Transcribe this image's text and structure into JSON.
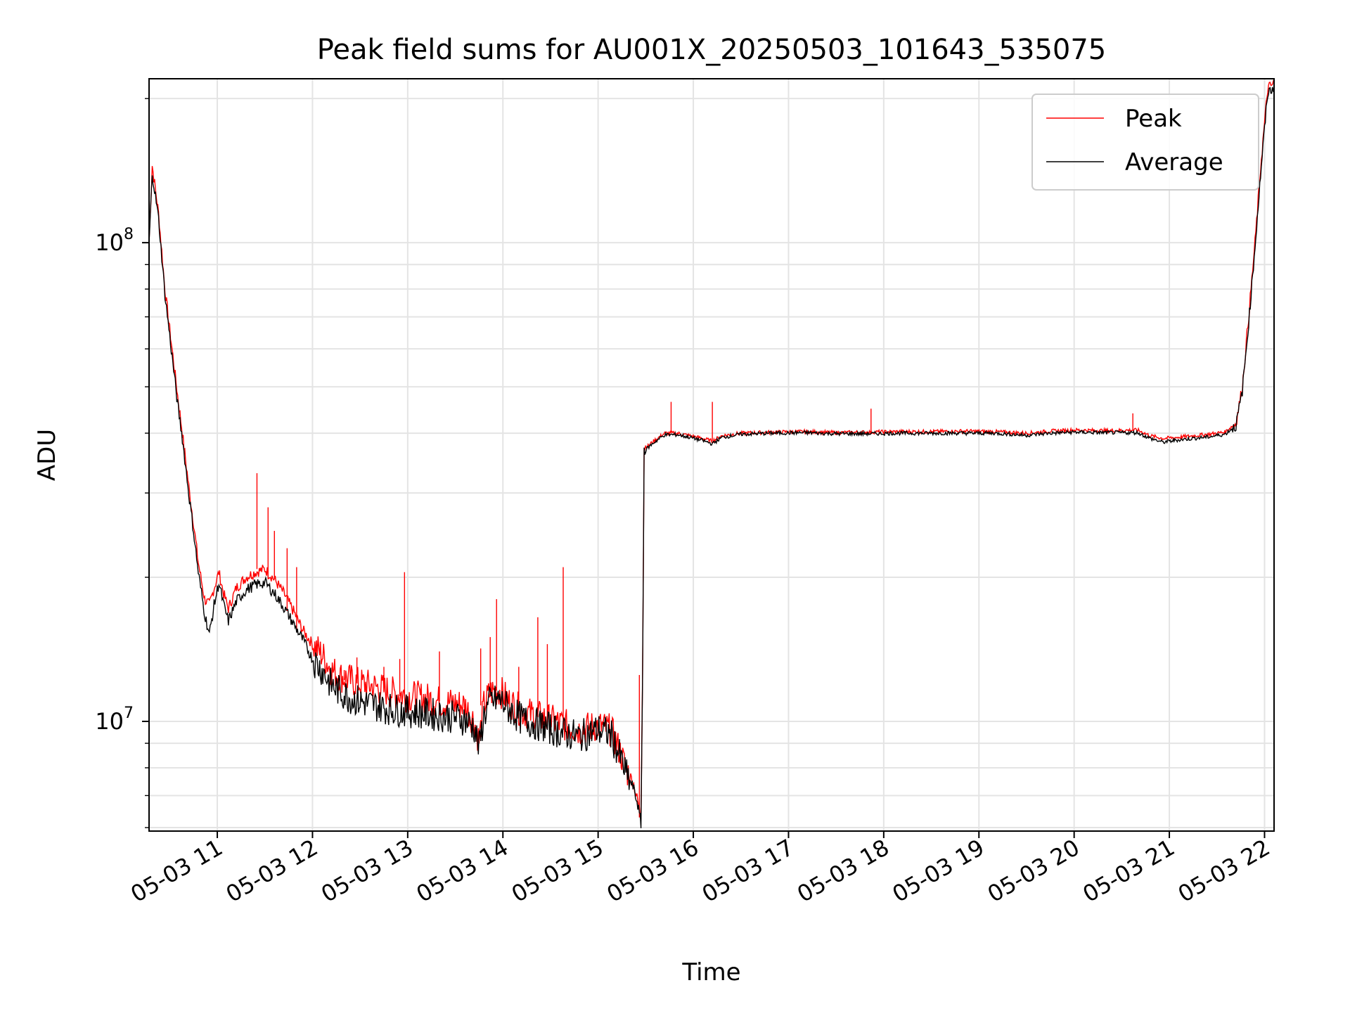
{
  "chart_data": {
    "type": "line",
    "title": "Peak field sums for AU001X_20250503_101643_535075",
    "xlabel": "Time",
    "ylabel": "ADU",
    "y_scale": "log",
    "ylim": [
      5900000,
      220000000
    ],
    "xlim": [
      "2025-05-03 10:17",
      "2025-05-03 22:06"
    ],
    "grid": true,
    "legend_position": "top-right",
    "x_ticks": [
      "05-03 11",
      "05-03 12",
      "05-03 13",
      "05-03 14",
      "05-03 15",
      "05-03 16",
      "05-03 17",
      "05-03 18",
      "05-03 19",
      "05-03 20",
      "05-03 21",
      "05-03 22"
    ],
    "y_ticks": [
      {
        "value": 10000000,
        "base": "10",
        "exp": "7"
      },
      {
        "value": 100000000,
        "base": "10",
        "exp": "8"
      }
    ],
    "series": [
      {
        "name": "Peak",
        "color": "#ff0000",
        "points": [
          [
            "2025-05-03 10:17",
            100000000
          ],
          [
            "2025-05-03 10:19",
            145000000
          ],
          [
            "2025-05-03 10:23",
            115000000
          ],
          [
            "2025-05-03 10:27",
            80000000
          ],
          [
            "2025-05-03 10:32",
            58000000
          ],
          [
            "2025-05-03 10:35",
            48000000
          ],
          [
            "2025-05-03 10:38",
            40000000
          ],
          [
            "2025-05-03 10:42",
            31000000
          ],
          [
            "2025-05-03 10:45",
            26000000
          ],
          [
            "2025-05-03 10:48",
            21500000
          ],
          [
            "2025-05-03 10:52",
            18000000
          ],
          [
            "2025-05-03 10:55",
            17500000
          ],
          [
            "2025-05-03 10:58",
            19000000
          ],
          [
            "2025-05-03 11:01",
            20500000
          ],
          [
            "2025-05-03 11:04",
            18500000
          ],
          [
            "2025-05-03 11:07",
            17200000
          ],
          [
            "2025-05-03 11:12",
            19000000
          ],
          [
            "2025-05-03 11:18",
            20000000
          ],
          [
            "2025-05-03 11:24",
            20500000
          ],
          [
            "2025-05-03 11:30",
            20800000
          ],
          [
            "2025-05-03 11:36",
            19800000
          ],
          [
            "2025-05-03 11:42",
            18500000
          ],
          [
            "2025-05-03 11:48",
            17000000
          ],
          [
            "2025-05-03 11:54",
            15500000
          ],
          [
            "2025-05-03 12:00",
            14500000
          ],
          [
            "2025-05-03 12:06",
            13800000
          ],
          [
            "2025-05-03 12:12",
            12800000
          ],
          [
            "2025-05-03 12:18",
            12400000
          ],
          [
            "2025-05-03 12:24",
            12200000
          ],
          [
            "2025-05-03 12:30",
            12000000
          ],
          [
            "2025-05-03 12:40",
            11800000
          ],
          [
            "2025-05-03 12:50",
            11500000
          ],
          [
            "2025-05-03 13:00",
            11300000
          ],
          [
            "2025-05-03 13:10",
            11200000
          ],
          [
            "2025-05-03 13:20",
            11000000
          ],
          [
            "2025-05-03 13:30",
            10900000
          ],
          [
            "2025-05-03 13:36",
            10800000
          ],
          [
            "2025-05-03 13:42",
            10000000
          ],
          [
            "2025-05-03 13:45",
            9100000
          ],
          [
            "2025-05-03 13:48",
            10800000
          ],
          [
            "2025-05-03 13:52",
            11500000
          ],
          [
            "2025-05-03 13:58",
            11600000
          ],
          [
            "2025-05-03 14:04",
            11000000
          ],
          [
            "2025-05-03 14:12",
            10500000
          ],
          [
            "2025-05-03 14:24",
            10200000
          ],
          [
            "2025-05-03 14:36",
            9900000
          ],
          [
            "2025-05-03 14:48",
            9600000
          ],
          [
            "2025-05-03 15:00",
            9800000
          ],
          [
            "2025-05-03 15:08",
            9600000
          ],
          [
            "2025-05-03 15:14",
            8600000
          ],
          [
            "2025-05-03 15:18",
            7900000
          ],
          [
            "2025-05-03 15:22",
            7500000
          ],
          [
            "2025-05-03 15:25",
            6800000
          ],
          [
            "2025-05-03 15:27",
            6300000
          ],
          [
            "2025-05-03 15:28",
            12500000
          ],
          [
            "2025-05-03 15:29",
            37500000
          ],
          [
            "2025-05-03 15:31",
            37500000
          ],
          [
            "2025-05-03 15:35",
            38500000
          ],
          [
            "2025-05-03 15:42",
            40000000
          ],
          [
            "2025-05-03 15:50",
            40000000
          ],
          [
            "2025-05-03 15:58",
            39500000
          ],
          [
            "2025-05-03 16:06",
            39000000
          ],
          [
            "2025-05-03 16:12",
            38500000
          ],
          [
            "2025-05-03 16:18",
            39500000
          ],
          [
            "2025-05-03 16:30",
            40000000
          ],
          [
            "2025-05-03 16:50",
            40200000
          ],
          [
            "2025-05-03 17:10",
            40300000
          ],
          [
            "2025-05-03 17:30",
            40100000
          ],
          [
            "2025-05-03 17:50",
            40200000
          ],
          [
            "2025-05-03 18:10",
            40300000
          ],
          [
            "2025-05-03 18:30",
            40300000
          ],
          [
            "2025-05-03 18:50",
            40400000
          ],
          [
            "2025-05-03 19:10",
            40300000
          ],
          [
            "2025-05-03 19:30",
            40000000
          ],
          [
            "2025-05-03 19:45",
            40400000
          ],
          [
            "2025-05-03 20:00",
            40600000
          ],
          [
            "2025-05-03 20:20",
            40500000
          ],
          [
            "2025-05-03 20:40",
            40600000
          ],
          [
            "2025-05-03 20:48",
            39500000
          ],
          [
            "2025-05-03 20:56",
            39000000
          ],
          [
            "2025-05-03 21:05",
            39200000
          ],
          [
            "2025-05-03 21:15",
            39500000
          ],
          [
            "2025-05-03 21:25",
            39800000
          ],
          [
            "2025-05-03 21:35",
            40200000
          ],
          [
            "2025-05-03 21:42",
            42000000
          ],
          [
            "2025-05-03 21:46",
            50000000
          ],
          [
            "2025-05-03 21:50",
            70000000
          ],
          [
            "2025-05-03 21:54",
            100000000
          ],
          [
            "2025-05-03 21:58",
            150000000
          ],
          [
            "2025-05-03 22:02",
            210000000
          ],
          [
            "2025-05-03 22:06",
            215000000
          ]
        ],
        "spikes": [
          [
            "2025-05-03 11:25",
            33000000
          ],
          [
            "2025-05-03 11:32",
            28000000
          ],
          [
            "2025-05-03 11:36",
            25000000
          ],
          [
            "2025-05-03 11:44",
            23000000
          ],
          [
            "2025-05-03 11:50",
            21000000
          ],
          [
            "2025-05-03 12:20",
            12800000
          ],
          [
            "2025-05-03 12:28",
            13600000
          ],
          [
            "2025-05-03 12:45",
            13000000
          ],
          [
            "2025-05-03 12:55",
            13500000
          ],
          [
            "2025-05-03 12:58",
            20500000
          ],
          [
            "2025-05-03 13:20",
            14000000
          ],
          [
            "2025-05-03 13:46",
            14200000
          ],
          [
            "2025-05-03 13:52",
            15000000
          ],
          [
            "2025-05-03 13:56",
            18000000
          ],
          [
            "2025-05-03 14:10",
            13000000
          ],
          [
            "2025-05-03 14:22",
            16500000
          ],
          [
            "2025-05-03 14:28",
            14500000
          ],
          [
            "2025-05-03 14:38",
            21000000
          ],
          [
            "2025-05-03 15:26",
            12500000
          ],
          [
            "2025-05-03 15:46",
            46500000
          ],
          [
            "2025-05-03 16:12",
            46500000
          ],
          [
            "2025-05-03 17:52",
            45000000
          ],
          [
            "2025-05-03 20:37",
            44000000
          ]
        ]
      },
      {
        "name": "Average",
        "color": "#000000",
        "points": [
          [
            "2025-05-03 10:17",
            99000000
          ],
          [
            "2025-05-03 10:19",
            140000000
          ],
          [
            "2025-05-03 10:23",
            112000000
          ],
          [
            "2025-05-03 10:27",
            78000000
          ],
          [
            "2025-05-03 10:32",
            56000000
          ],
          [
            "2025-05-03 10:35",
            46000000
          ],
          [
            "2025-05-03 10:38",
            39000000
          ],
          [
            "2025-05-03 10:42",
            30000000
          ],
          [
            "2025-05-03 10:45",
            25000000
          ],
          [
            "2025-05-03 10:48",
            20500000
          ],
          [
            "2025-05-03 10:52",
            16800000
          ],
          [
            "2025-05-03 10:55",
            15200000
          ],
          [
            "2025-05-03 10:58",
            17500000
          ],
          [
            "2025-05-03 11:01",
            19500000
          ],
          [
            "2025-05-03 11:04",
            17500000
          ],
          [
            "2025-05-03 11:07",
            16200000
          ],
          [
            "2025-05-03 11:12",
            17800000
          ],
          [
            "2025-05-03 11:18",
            18800000
          ],
          [
            "2025-05-03 11:24",
            19300000
          ],
          [
            "2025-05-03 11:30",
            19500000
          ],
          [
            "2025-05-03 11:36",
            18500000
          ],
          [
            "2025-05-03 11:42",
            17300000
          ],
          [
            "2025-05-03 11:48",
            16000000
          ],
          [
            "2025-05-03 11:54",
            14800000
          ],
          [
            "2025-05-03 12:00",
            13500000
          ],
          [
            "2025-05-03 12:06",
            12800000
          ],
          [
            "2025-05-03 12:12",
            11900000
          ],
          [
            "2025-05-03 12:18",
            11500000
          ],
          [
            "2025-05-03 12:24",
            11200000
          ],
          [
            "2025-05-03 12:30",
            11000000
          ],
          [
            "2025-05-03 12:40",
            10800000
          ],
          [
            "2025-05-03 12:50",
            10600000
          ],
          [
            "2025-05-03 13:00",
            10500000
          ],
          [
            "2025-05-03 13:10",
            10400000
          ],
          [
            "2025-05-03 13:20",
            10300000
          ],
          [
            "2025-05-03 13:30",
            10200000
          ],
          [
            "2025-05-03 13:36",
            10100000
          ],
          [
            "2025-05-03 13:42",
            9700000
          ],
          [
            "2025-05-03 13:45",
            8800000
          ],
          [
            "2025-05-03 13:48",
            10300000
          ],
          [
            "2025-05-03 13:52",
            11000000
          ],
          [
            "2025-05-03 13:58",
            11100000
          ],
          [
            "2025-05-03 14:04",
            10600000
          ],
          [
            "2025-05-03 14:12",
            10100000
          ],
          [
            "2025-05-03 14:24",
            9800000
          ],
          [
            "2025-05-03 14:36",
            9500000
          ],
          [
            "2025-05-03 14:48",
            9300000
          ],
          [
            "2025-05-03 15:00",
            9600000
          ],
          [
            "2025-05-03 15:08",
            9400000
          ],
          [
            "2025-05-03 15:14",
            8400000
          ],
          [
            "2025-05-03 15:18",
            7700000
          ],
          [
            "2025-05-03 15:22",
            7300000
          ],
          [
            "2025-05-03 15:25",
            6700000
          ],
          [
            "2025-05-03 15:27",
            6100000
          ],
          [
            "2025-05-03 15:28",
            12000000
          ],
          [
            "2025-05-03 15:29",
            37000000
          ],
          [
            "2025-05-03 15:31",
            37200000
          ],
          [
            "2025-05-03 15:35",
            38200000
          ],
          [
            "2025-05-03 15:42",
            39700000
          ],
          [
            "2025-05-03 15:50",
            39700000
          ],
          [
            "2025-05-03 15:58",
            39200000
          ],
          [
            "2025-05-03 16:06",
            38600000
          ],
          [
            "2025-05-03 16:12",
            38000000
          ],
          [
            "2025-05-03 16:18",
            39200000
          ],
          [
            "2025-05-03 16:30",
            39800000
          ],
          [
            "2025-05-03 16:50",
            40000000
          ],
          [
            "2025-05-03 17:10",
            40100000
          ],
          [
            "2025-05-03 17:30",
            39900000
          ],
          [
            "2025-05-03 17:50",
            39900000
          ],
          [
            "2025-05-03 18:10",
            40000000
          ],
          [
            "2025-05-03 18:30",
            40000000
          ],
          [
            "2025-05-03 18:50",
            40000000
          ],
          [
            "2025-05-03 19:10",
            40000000
          ],
          [
            "2025-05-03 19:30",
            39600000
          ],
          [
            "2025-05-03 19:45",
            40000000
          ],
          [
            "2025-05-03 20:00",
            40200000
          ],
          [
            "2025-05-03 20:20",
            40100000
          ],
          [
            "2025-05-03 20:40",
            40100000
          ],
          [
            "2025-05-03 20:48",
            39000000
          ],
          [
            "2025-05-03 20:56",
            38300000
          ],
          [
            "2025-05-03 21:05",
            38700000
          ],
          [
            "2025-05-03 21:15",
            39000000
          ],
          [
            "2025-05-03 21:25",
            39300000
          ],
          [
            "2025-05-03 21:35",
            39800000
          ],
          [
            "2025-05-03 21:42",
            41500000
          ],
          [
            "2025-05-03 21:46",
            49000000
          ],
          [
            "2025-05-03 21:50",
            68000000
          ],
          [
            "2025-05-03 21:54",
            98000000
          ],
          [
            "2025-05-03 21:58",
            145000000
          ],
          [
            "2025-05-03 22:02",
            205000000
          ],
          [
            "2025-05-03 22:06",
            212000000
          ]
        ]
      }
    ]
  }
}
